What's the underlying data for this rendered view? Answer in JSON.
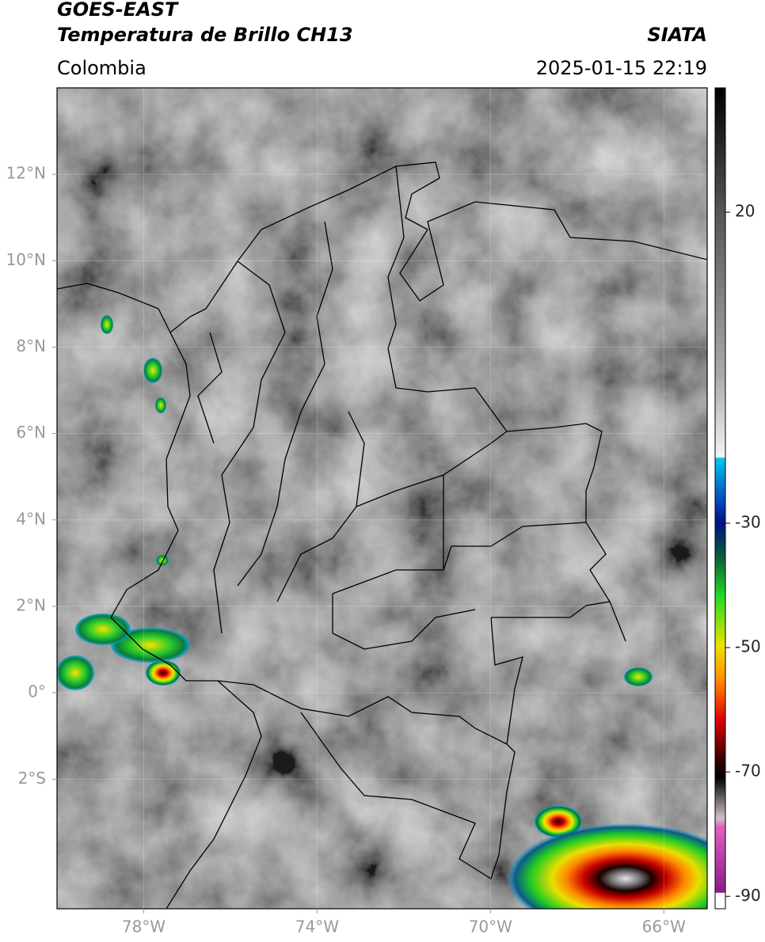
{
  "header": {
    "title": "GOES-EAST",
    "subtitle": "Temperatura de Brillo CH13",
    "source": "SIATA",
    "region": "Colombia",
    "datetime": "2025-01-15 22:19"
  },
  "map": {
    "lon_range": [
      -80,
      -65
    ],
    "lat_range": [
      -5,
      14
    ],
    "lat_ticks": [
      {
        "value": 12,
        "label": "12°N"
      },
      {
        "value": 10,
        "label": "10°N"
      },
      {
        "value": 8,
        "label": "8°N"
      },
      {
        "value": 6,
        "label": "6°N"
      },
      {
        "value": 4,
        "label": "4°N"
      },
      {
        "value": 2,
        "label": "2°N"
      },
      {
        "value": 0,
        "label": "0°"
      },
      {
        "value": -2,
        "label": "2°S"
      }
    ],
    "lon_ticks": [
      {
        "value": -78,
        "label": "78°W"
      },
      {
        "value": -74,
        "label": "74°W"
      },
      {
        "value": -70,
        "label": "70°W"
      },
      {
        "value": -66,
        "label": "66°W"
      }
    ],
    "grid": true
  },
  "colorbar": {
    "range": [
      -92,
      40
    ],
    "ticks": [
      20,
      -30,
      -50,
      -70,
      -90
    ]
  }
}
